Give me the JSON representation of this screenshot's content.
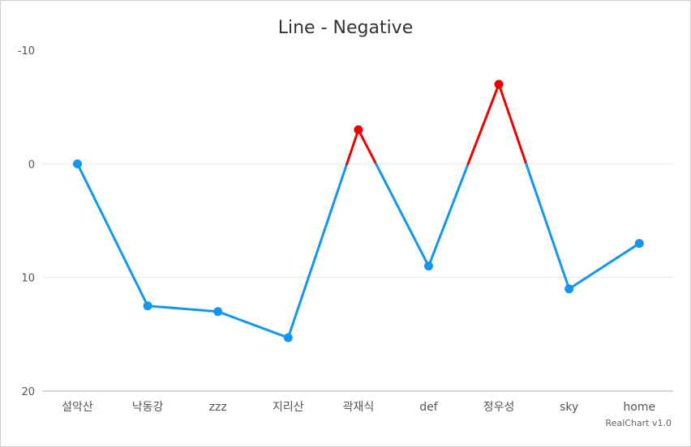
{
  "chart_data": {
    "type": "line",
    "title": "Line - Negative",
    "credit": "RealChart v1.0",
    "categories": [
      "설악산",
      "낙동강",
      "zzz",
      "지리산",
      "곽재식",
      "def",
      "정우성",
      "sky",
      "home"
    ],
    "series": [
      {
        "values": [
          0,
          12.5,
          13,
          15.3,
          -3,
          9,
          -7,
          11,
          7
        ]
      }
    ],
    "y_axis": {
      "reversed": true,
      "min": -10,
      "max": 20,
      "ticks": [
        "-10",
        "0",
        "10",
        "20"
      ]
    },
    "grid": true,
    "colors": {
      "line": "#1496ef",
      "negative": "#ee0000",
      "grid": "#e6e6e6",
      "axis": "#c8c8c8"
    }
  }
}
